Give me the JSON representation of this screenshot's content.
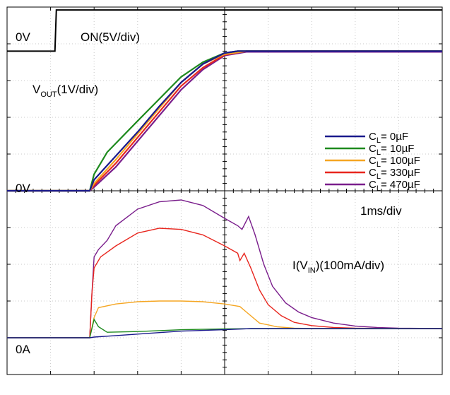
{
  "chart_data": {
    "type": "line",
    "title": "",
    "time_base": "1ms/div",
    "grid": true,
    "grid_divisions": {
      "x": 10,
      "y": 10
    },
    "legend_position": "middle-right",
    "traces": {
      "on": {
        "label": "ON(5V/div)",
        "zero_label": "0V",
        "ground_div": 1.2,
        "volts_per_div": 5,
        "step_time_div": 1.1,
        "high_level_v": 5.6
      },
      "vout": {
        "label_main": "V",
        "label_sub": "OUT",
        "label_rest": "(1V/div)",
        "zero_label": "0V",
        "ground_div": 5.0,
        "volts_per_div": 1
      },
      "iin": {
        "label_main": "I(V",
        "label_sub": "IN",
        "label_rest": ")(100mA/div)",
        "zero_label": "0A",
        "ground_div": 9.0,
        "ma_per_div": 100
      }
    },
    "series": [
      {
        "name": "CL = 0µF",
        "legend_main": "C",
        "legend_sub": "L",
        "legend_rest": "= 0µF",
        "color": "#1a1a8c",
        "vout": [
          [
            0,
            0
          ],
          [
            1.9,
            0
          ],
          [
            2.0,
            0.3
          ],
          [
            2.5,
            0.95
          ],
          [
            3,
            1.6
          ],
          [
            3.5,
            2.3
          ],
          [
            4,
            2.95
          ],
          [
            4.5,
            3.45
          ],
          [
            5,
            3.75
          ],
          [
            5.3,
            3.8
          ],
          [
            10,
            3.8
          ]
        ],
        "iin": [
          [
            0,
            0
          ],
          [
            1.9,
            0
          ],
          [
            2.0,
            0.02
          ],
          [
            2.5,
            0.06
          ],
          [
            3,
            0.1
          ],
          [
            3.5,
            0.14
          ],
          [
            4,
            0.18
          ],
          [
            4.5,
            0.2
          ],
          [
            5,
            0.22
          ],
          [
            5.6,
            0.25
          ],
          [
            10,
            0.25
          ]
        ]
      },
      {
        "name": "CL = 10µF",
        "legend_main": "C",
        "legend_sub": "L",
        "legend_rest": "= 10µF",
        "color": "#1e8a1e",
        "vout": [
          [
            0,
            0
          ],
          [
            1.9,
            0
          ],
          [
            2.0,
            0.45
          ],
          [
            2.3,
            1.05
          ],
          [
            3,
            1.9
          ],
          [
            3.5,
            2.5
          ],
          [
            4,
            3.1
          ],
          [
            4.5,
            3.5
          ],
          [
            5,
            3.75
          ],
          [
            5.3,
            3.8
          ],
          [
            10,
            3.8
          ]
        ],
        "iin": [
          [
            0,
            0
          ],
          [
            1.9,
            0
          ],
          [
            2.0,
            0.5
          ],
          [
            2.1,
            0.3
          ],
          [
            2.3,
            0.15
          ],
          [
            3,
            0.17
          ],
          [
            4,
            0.22
          ],
          [
            5,
            0.24
          ],
          [
            6,
            0.25
          ],
          [
            10,
            0.25
          ]
        ]
      },
      {
        "name": "CL = 100µF",
        "legend_main": "C",
        "legend_sub": "L",
        "legend_rest": "= 100µF",
        "color": "#f5a623",
        "vout": [
          [
            0,
            0
          ],
          [
            1.9,
            0
          ],
          [
            2.0,
            0.2
          ],
          [
            2.5,
            0.85
          ],
          [
            3,
            1.55
          ],
          [
            3.5,
            2.25
          ],
          [
            4,
            2.95
          ],
          [
            4.5,
            3.45
          ],
          [
            5,
            3.72
          ],
          [
            5.5,
            3.8
          ],
          [
            10,
            3.8
          ]
        ],
        "iin": [
          [
            0,
            0
          ],
          [
            1.9,
            0
          ],
          [
            2.0,
            0.55
          ],
          [
            2.1,
            0.82
          ],
          [
            2.5,
            0.92
          ],
          [
            3,
            0.98
          ],
          [
            3.5,
            1.0
          ],
          [
            4,
            1.0
          ],
          [
            4.5,
            0.98
          ],
          [
            5,
            0.92
          ],
          [
            5.35,
            0.85
          ],
          [
            5.5,
            0.7
          ],
          [
            5.8,
            0.4
          ],
          [
            6.2,
            0.3
          ],
          [
            6.6,
            0.26
          ],
          [
            7,
            0.25
          ],
          [
            10,
            0.25
          ]
        ]
      },
      {
        "name": "CL = 330µF",
        "legend_main": "C",
        "legend_sub": "L",
        "legend_rest": "= 330µF",
        "color": "#e8261e",
        "vout": [
          [
            0,
            0
          ],
          [
            1.9,
            0
          ],
          [
            2.0,
            0.15
          ],
          [
            2.5,
            0.75
          ],
          [
            3,
            1.45
          ],
          [
            3.5,
            2.15
          ],
          [
            4,
            2.85
          ],
          [
            4.5,
            3.35
          ],
          [
            5,
            3.7
          ],
          [
            5.5,
            3.8
          ],
          [
            10,
            3.8
          ]
        ],
        "iin": [
          [
            0,
            0
          ],
          [
            1.9,
            0
          ],
          [
            1.95,
            1.2
          ],
          [
            2.0,
            1.9
          ],
          [
            2.15,
            2.2
          ],
          [
            2.5,
            2.5
          ],
          [
            3,
            2.85
          ],
          [
            3.5,
            2.98
          ],
          [
            4,
            2.95
          ],
          [
            4.5,
            2.8
          ],
          [
            5,
            2.5
          ],
          [
            5.3,
            2.3
          ],
          [
            5.35,
            2.1
          ],
          [
            5.45,
            2.3
          ],
          [
            5.6,
            1.9
          ],
          [
            5.8,
            1.3
          ],
          [
            6,
            0.9
          ],
          [
            6.3,
            0.6
          ],
          [
            6.6,
            0.42
          ],
          [
            7,
            0.33
          ],
          [
            7.5,
            0.28
          ],
          [
            8,
            0.26
          ],
          [
            10,
            0.25
          ]
        ]
      },
      {
        "name": "CL = 470µF",
        "legend_main": "C",
        "legend_sub": "L",
        "legend_rest": "= 470µF",
        "color": "#7a1e8c",
        "vout": [
          [
            0,
            0
          ],
          [
            1.9,
            0
          ],
          [
            2.0,
            0.1
          ],
          [
            2.5,
            0.65
          ],
          [
            3,
            1.35
          ],
          [
            3.5,
            2.05
          ],
          [
            4,
            2.75
          ],
          [
            4.5,
            3.3
          ],
          [
            5,
            3.68
          ],
          [
            5.5,
            3.78
          ],
          [
            10,
            3.78
          ]
        ],
        "iin": [
          [
            0,
            0
          ],
          [
            1.9,
            0
          ],
          [
            1.95,
            1.2
          ],
          [
            2.0,
            2.2
          ],
          [
            2.1,
            2.4
          ],
          [
            2.3,
            2.65
          ],
          [
            2.5,
            3.05
          ],
          [
            3,
            3.5
          ],
          [
            3.5,
            3.7
          ],
          [
            4,
            3.75
          ],
          [
            4.5,
            3.6
          ],
          [
            5,
            3.25
          ],
          [
            5.3,
            3.05
          ],
          [
            5.4,
            2.95
          ],
          [
            5.55,
            3.3
          ],
          [
            5.7,
            2.8
          ],
          [
            5.9,
            2.0
          ],
          [
            6.1,
            1.4
          ],
          [
            6.4,
            0.95
          ],
          [
            6.7,
            0.7
          ],
          [
            7,
            0.55
          ],
          [
            7.5,
            0.4
          ],
          [
            8,
            0.32
          ],
          [
            8.5,
            0.28
          ],
          [
            9,
            0.26
          ],
          [
            10,
            0.25
          ]
        ]
      }
    ]
  }
}
